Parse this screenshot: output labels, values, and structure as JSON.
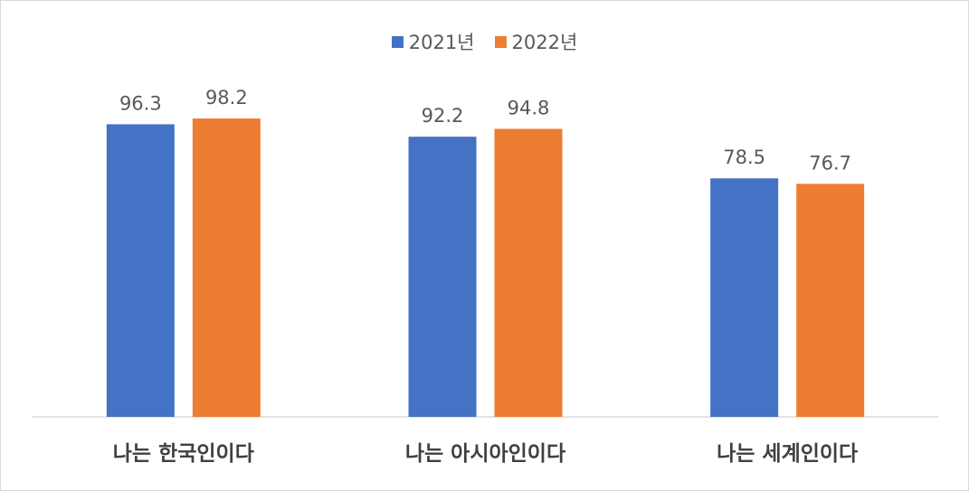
{
  "chart_data": {
    "type": "bar",
    "categories": [
      "나는 한국인이다",
      "나는 아시아인이다",
      "나는 세계인이다"
    ],
    "series": [
      {
        "name": "2021년",
        "values": [
          96.3,
          92.2,
          78.5
        ],
        "color": "#4472c4"
      },
      {
        "name": "2022년",
        "values": [
          98.2,
          94.8,
          76.7
        ],
        "color": "#ed7d31"
      }
    ],
    "ylim": [
      0,
      100
    ],
    "grid": false,
    "legend": "top-center",
    "axis_color": "#d9d9d9"
  }
}
